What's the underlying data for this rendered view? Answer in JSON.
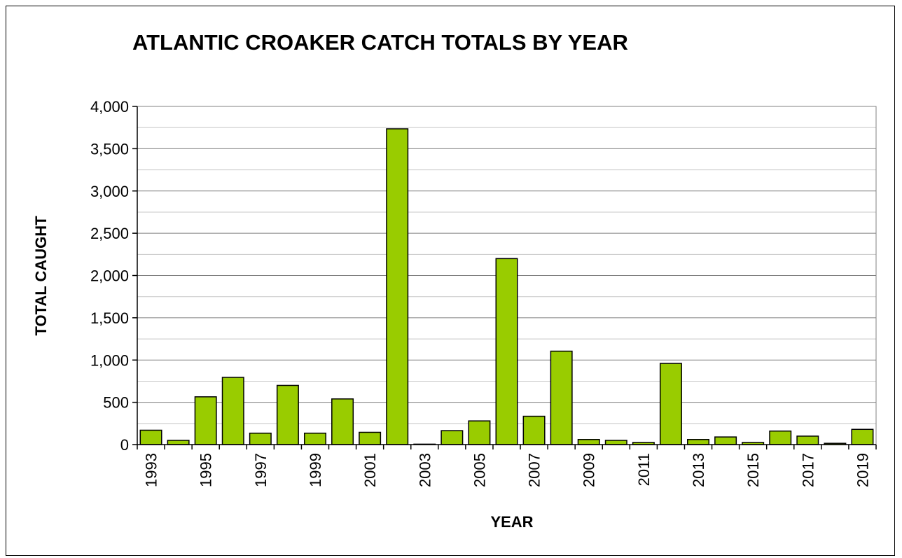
{
  "chart_data": {
    "type": "bar",
    "title": "ATLANTIC CROAKER CATCH TOTALS BY YEAR",
    "xlabel": "YEAR",
    "ylabel": "TOTAL CAUGHT",
    "ylim": [
      0,
      4000
    ],
    "yticks": [
      0,
      500,
      1000,
      1500,
      2000,
      2500,
      3000,
      3500,
      4000
    ],
    "ytick_labels": [
      "0",
      "500",
      "1,000",
      "1,500",
      "2,000",
      "2,500",
      "3,000",
      "3,500",
      "4,000"
    ],
    "grid": "horizontal",
    "categories": [
      "1993",
      "1994",
      "1995",
      "1996",
      "1997",
      "1998",
      "1999",
      "2000",
      "2001",
      "2002",
      "2003",
      "2004",
      "2005",
      "2006",
      "2007",
      "2008",
      "2009",
      "2010",
      "2011",
      "2012",
      "2013",
      "2014",
      "2015",
      "2016",
      "2017",
      "2018",
      "2019"
    ],
    "x_tick_labels": [
      "1993",
      "",
      "1995",
      "",
      "1997",
      "",
      "1999",
      "",
      "2001",
      "",
      "2003",
      "",
      "2005",
      "",
      "2007",
      "",
      "2009",
      "",
      "2011",
      "",
      "2013",
      "",
      "2015",
      "",
      "2017",
      "",
      "2019"
    ],
    "values": [
      170,
      50,
      565,
      795,
      135,
      700,
      135,
      540,
      145,
      3735,
      5,
      165,
      280,
      2200,
      335,
      1105,
      60,
      50,
      25,
      960,
      60,
      90,
      25,
      160,
      100,
      15,
      180
    ],
    "bar_color": "#99cc00",
    "bar_edge_color": "#000000"
  }
}
